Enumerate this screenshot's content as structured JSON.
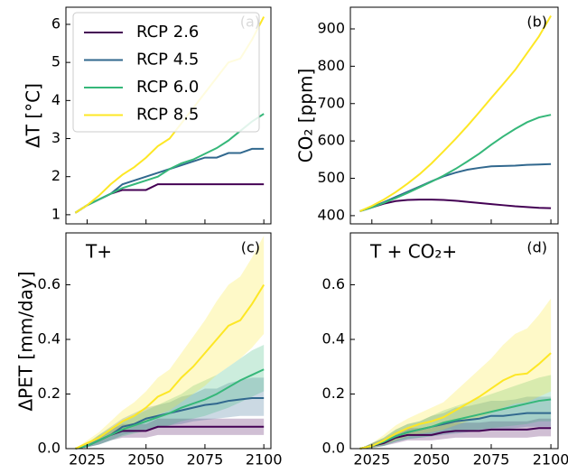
{
  "chart_data": [
    {
      "type": "line",
      "panel_label": "(a)",
      "ylabel": "ΔT [°C]",
      "legend": "upper left",
      "x": [
        2020,
        2025,
        2030,
        2035,
        2040,
        2045,
        2050,
        2055,
        2060,
        2065,
        2070,
        2075,
        2080,
        2085,
        2090,
        2095,
        2100
      ],
      "xlim": [
        2016,
        2103
      ],
      "xticks": [
        2025,
        2050,
        2075,
        2100
      ],
      "ylim": [
        0.76,
        6.45
      ],
      "yticks": [
        1,
        2,
        3,
        4,
        5,
        6
      ],
      "series": [
        {
          "name": "RCP 2.6",
          "color": "#440154",
          "values": [
            1.05,
            1.25,
            1.4,
            1.55,
            1.65,
            1.65,
            1.65,
            1.8,
            1.8,
            1.8,
            1.8,
            1.8,
            1.8,
            1.8,
            1.8,
            1.8,
            1.8
          ]
        },
        {
          "name": "RCP 4.5",
          "color": "#31688e",
          "values": [
            1.05,
            1.25,
            1.4,
            1.55,
            1.8,
            1.9,
            2.0,
            2.1,
            2.2,
            2.3,
            2.4,
            2.5,
            2.5,
            2.62,
            2.62,
            2.73,
            2.73
          ]
        },
        {
          "name": "RCP 6.0",
          "color": "#35b779",
          "values": [
            1.05,
            1.25,
            1.4,
            1.55,
            1.7,
            1.8,
            1.9,
            2.0,
            2.2,
            2.35,
            2.45,
            2.6,
            2.75,
            2.95,
            3.2,
            3.45,
            3.65
          ]
        },
        {
          "name": "RCP 8.5",
          "color": "#fde725",
          "values": [
            1.05,
            1.25,
            1.5,
            1.8,
            2.05,
            2.25,
            2.5,
            2.8,
            3.0,
            3.4,
            3.8,
            4.2,
            4.6,
            5.0,
            5.1,
            5.6,
            6.2
          ]
        }
      ]
    },
    {
      "type": "line",
      "panel_label": "(b)",
      "ylabel": "CO₂ [ppm]",
      "x": [
        2020,
        2025,
        2030,
        2035,
        2040,
        2045,
        2050,
        2055,
        2060,
        2065,
        2070,
        2075,
        2080,
        2085,
        2090,
        2095,
        2100
      ],
      "xlim": [
        2016,
        2103
      ],
      "xticks": [
        2025,
        2050,
        2075,
        2100
      ],
      "ylim": [
        378,
        958
      ],
      "yticks": [
        400,
        500,
        600,
        700,
        800,
        900
      ],
      "series": [
        {
          "name": "RCP 2.6",
          "color": "#440154",
          "values": [
            412,
            422,
            432,
            439,
            442,
            443,
            443,
            442,
            440,
            437,
            434,
            431,
            428,
            425,
            423,
            421,
            420
          ]
        },
        {
          "name": "RCP 4.5",
          "color": "#31688e",
          "values": [
            412,
            423,
            436,
            450,
            464,
            478,
            492,
            505,
            515,
            523,
            528,
            532,
            533,
            534,
            536,
            537,
            538
          ]
        },
        {
          "name": "RCP 6.0",
          "color": "#35b779",
          "values": [
            412,
            422,
            434,
            447,
            461,
            476,
            491,
            507,
            525,
            545,
            566,
            590,
            612,
            632,
            650,
            663,
            670
          ]
        },
        {
          "name": "RCP 8.5",
          "color": "#fde725",
          "values": [
            412,
            426,
            443,
            463,
            486,
            511,
            540,
            572,
            605,
            640,
            677,
            715,
            752,
            790,
            835,
            880,
            935
          ]
        }
      ]
    },
    {
      "type": "line",
      "panel_label": "(c)",
      "title": "T+",
      "ylabel": "ΔPET [mm/day]",
      "x": [
        2020,
        2025,
        2030,
        2035,
        2040,
        2045,
        2050,
        2055,
        2060,
        2065,
        2070,
        2075,
        2080,
        2085,
        2090,
        2095,
        2100
      ],
      "xlim": [
        2016,
        2103
      ],
      "xticks": [
        2025,
        2050,
        2075,
        2100
      ],
      "ylim": [
        0,
        0.79
      ],
      "yticks": [
        {
          "value": 0,
          "label": "0.0"
        },
        {
          "value": 0.2,
          "label": "0.2"
        },
        {
          "value": 0.4,
          "label": "0.4"
        },
        {
          "value": 0.6,
          "label": "0.6"
        }
      ],
      "series": [
        {
          "name": "RCP 2.6",
          "color": "#440154",
          "values": [
            0,
            0.01,
            0.03,
            0.05,
            0.065,
            0.065,
            0.065,
            0.08,
            0.08,
            0.08,
            0.08,
            0.08,
            0.08,
            0.08,
            0.08,
            0.08,
            0.08
          ],
          "lower": [
            0,
            0.005,
            0.015,
            0.03,
            0.04,
            0.04,
            0.04,
            0.05,
            0.05,
            0.05,
            0.05,
            0.05,
            0.05,
            0.05,
            0.05,
            0.05,
            0.05
          ],
          "upper": [
            0,
            0.02,
            0.045,
            0.07,
            0.09,
            0.09,
            0.09,
            0.11,
            0.11,
            0.11,
            0.11,
            0.11,
            0.11,
            0.11,
            0.11,
            0.11,
            0.11
          ]
        },
        {
          "name": "RCP 4.5",
          "color": "#31688e",
          "values": [
            0,
            0.01,
            0.03,
            0.05,
            0.08,
            0.09,
            0.11,
            0.12,
            0.13,
            0.14,
            0.15,
            0.16,
            0.165,
            0.175,
            0.18,
            0.185,
            0.185
          ],
          "lower": [
            0,
            0.005,
            0.015,
            0.03,
            0.05,
            0.06,
            0.07,
            0.08,
            0.085,
            0.09,
            0.1,
            0.105,
            0.11,
            0.115,
            0.12,
            0.12,
            0.12
          ],
          "upper": [
            0,
            0.02,
            0.05,
            0.08,
            0.11,
            0.13,
            0.15,
            0.16,
            0.17,
            0.19,
            0.2,
            0.22,
            0.22,
            0.24,
            0.25,
            0.26,
            0.26
          ]
        },
        {
          "name": "RCP 6.0",
          "color": "#35b779",
          "values": [
            0,
            0.01,
            0.03,
            0.05,
            0.07,
            0.085,
            0.1,
            0.115,
            0.13,
            0.15,
            0.165,
            0.18,
            0.2,
            0.225,
            0.25,
            0.27,
            0.29
          ],
          "lower": [
            0,
            0.005,
            0.015,
            0.03,
            0.045,
            0.055,
            0.065,
            0.075,
            0.085,
            0.1,
            0.11,
            0.12,
            0.135,
            0.15,
            0.17,
            0.19,
            0.21
          ],
          "upper": [
            0,
            0.02,
            0.05,
            0.075,
            0.1,
            0.12,
            0.14,
            0.16,
            0.18,
            0.2,
            0.23,
            0.25,
            0.27,
            0.3,
            0.33,
            0.36,
            0.38
          ]
        },
        {
          "name": "RCP 8.5",
          "color": "#fde725",
          "values": [
            0,
            0.02,
            0.04,
            0.07,
            0.1,
            0.12,
            0.15,
            0.19,
            0.21,
            0.26,
            0.3,
            0.35,
            0.4,
            0.45,
            0.47,
            0.53,
            0.6
          ],
          "lower": [
            0,
            0.01,
            0.025,
            0.045,
            0.065,
            0.08,
            0.1,
            0.125,
            0.14,
            0.17,
            0.2,
            0.23,
            0.27,
            0.3,
            0.33,
            0.37,
            0.42
          ],
          "upper": [
            0,
            0.03,
            0.06,
            0.1,
            0.14,
            0.17,
            0.21,
            0.26,
            0.29,
            0.35,
            0.41,
            0.47,
            0.54,
            0.6,
            0.63,
            0.7,
            0.78
          ]
        }
      ]
    },
    {
      "type": "line",
      "panel_label": "(d)",
      "title": "T + CO₂+",
      "x": [
        2020,
        2025,
        2030,
        2035,
        2040,
        2045,
        2050,
        2055,
        2060,
        2065,
        2070,
        2075,
        2080,
        2085,
        2090,
        2095,
        2100
      ],
      "xlim": [
        2016,
        2103
      ],
      "xticks": [
        2025,
        2050,
        2075,
        2100
      ],
      "ylim": [
        0,
        0.79
      ],
      "yticks": [
        {
          "value": 0,
          "label": "0.0"
        },
        {
          "value": 0.2,
          "label": "0.2"
        },
        {
          "value": 0.4,
          "label": "0.4"
        },
        {
          "value": 0.6,
          "label": "0.6"
        }
      ],
      "series": [
        {
          "name": "RCP 2.6",
          "color": "#440154",
          "values": [
            0,
            0.01,
            0.02,
            0.04,
            0.05,
            0.05,
            0.05,
            0.06,
            0.065,
            0.065,
            0.065,
            0.07,
            0.07,
            0.07,
            0.07,
            0.075,
            0.075
          ],
          "lower": [
            0,
            0.003,
            0.01,
            0.02,
            0.03,
            0.03,
            0.03,
            0.035,
            0.04,
            0.04,
            0.04,
            0.04,
            0.04,
            0.04,
            0.04,
            0.045,
            0.045
          ],
          "upper": [
            0,
            0.02,
            0.035,
            0.06,
            0.075,
            0.075,
            0.075,
            0.09,
            0.095,
            0.095,
            0.095,
            0.1,
            0.1,
            0.1,
            0.1,
            0.11,
            0.11
          ]
        },
        {
          "name": "RCP 4.5",
          "color": "#31688e",
          "values": [
            0,
            0.01,
            0.025,
            0.045,
            0.06,
            0.07,
            0.08,
            0.09,
            0.1,
            0.105,
            0.11,
            0.12,
            0.12,
            0.125,
            0.13,
            0.13,
            0.13
          ],
          "lower": [
            0,
            0.003,
            0.01,
            0.025,
            0.035,
            0.04,
            0.045,
            0.05,
            0.055,
            0.06,
            0.065,
            0.07,
            0.07,
            0.075,
            0.08,
            0.08,
            0.08
          ],
          "upper": [
            0,
            0.02,
            0.04,
            0.07,
            0.09,
            0.1,
            0.12,
            0.13,
            0.15,
            0.155,
            0.165,
            0.175,
            0.175,
            0.18,
            0.19,
            0.19,
            0.19
          ]
        },
        {
          "name": "RCP 6.0",
          "color": "#35b779",
          "values": [
            0,
            0.01,
            0.025,
            0.045,
            0.06,
            0.07,
            0.08,
            0.095,
            0.105,
            0.115,
            0.125,
            0.135,
            0.145,
            0.155,
            0.165,
            0.175,
            0.18
          ],
          "lower": [
            0,
            0.003,
            0.01,
            0.025,
            0.035,
            0.04,
            0.045,
            0.055,
            0.06,
            0.065,
            0.07,
            0.075,
            0.08,
            0.085,
            0.09,
            0.1,
            0.1
          ],
          "upper": [
            0,
            0.02,
            0.04,
            0.07,
            0.09,
            0.1,
            0.12,
            0.14,
            0.155,
            0.17,
            0.185,
            0.2,
            0.215,
            0.23,
            0.245,
            0.26,
            0.27
          ]
        },
        {
          "name": "RCP 8.5",
          "color": "#fde725",
          "values": [
            0,
            0.01,
            0.03,
            0.055,
            0.075,
            0.09,
            0.1,
            0.115,
            0.14,
            0.165,
            0.19,
            0.22,
            0.25,
            0.27,
            0.275,
            0.31,
            0.35
          ],
          "lower": [
            0,
            0.003,
            0.015,
            0.03,
            0.045,
            0.055,
            0.06,
            0.07,
            0.085,
            0.1,
            0.115,
            0.13,
            0.15,
            0.165,
            0.17,
            0.19,
            0.21
          ],
          "upper": [
            0,
            0.02,
            0.05,
            0.085,
            0.11,
            0.13,
            0.15,
            0.17,
            0.21,
            0.25,
            0.29,
            0.33,
            0.38,
            0.42,
            0.44,
            0.49,
            0.55
          ]
        }
      ]
    }
  ]
}
